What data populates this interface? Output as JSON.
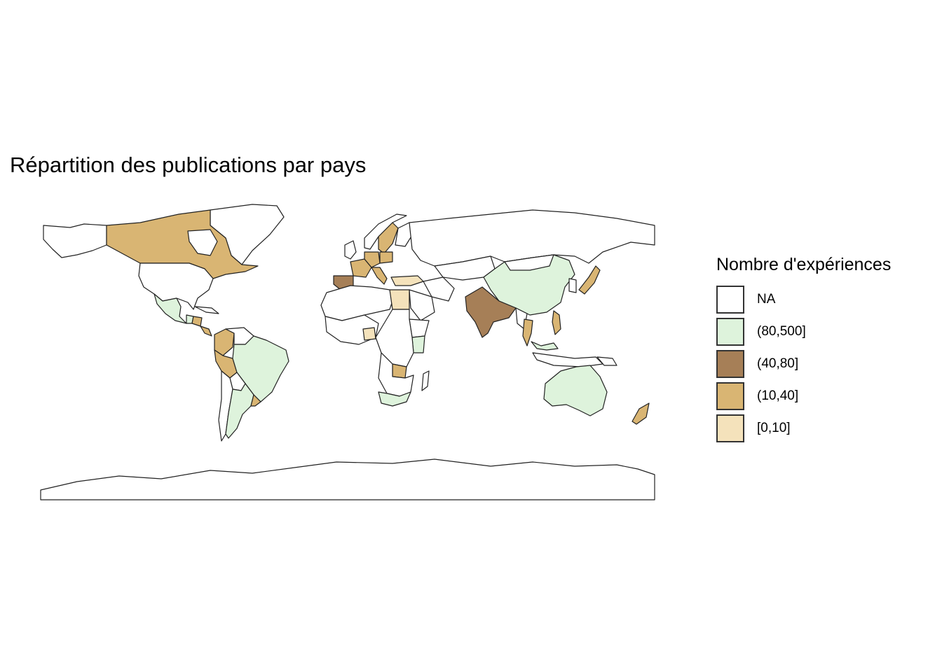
{
  "map": {
    "title": "Répartition des publications par pays",
    "legend": {
      "title": "Nombre d'expériences",
      "items": [
        {
          "label": "NA",
          "color": "#ffffff"
        },
        {
          "label": "(80,500]",
          "color": "#def3dc"
        },
        {
          "label": "(40,80]",
          "color": "#a67f57"
        },
        {
          "label": "(10,40]",
          "color": "#d9b573"
        },
        {
          "label": "[0,10]",
          "color": "#f4e2bb"
        }
      ]
    },
    "border_color": "#222222",
    "country_classes": {
      "(80,500]": [
        "China",
        "Brazil",
        "Australia",
        "Mexico",
        "Argentina",
        "Kenya",
        "South Africa",
        "Malaysia",
        "Guatemala"
      ],
      "(40,80]": [
        "India",
        "Spain"
      ],
      "(10,40]": [
        "Canada",
        "Peru",
        "Colombia",
        "Zambia",
        "New Zealand",
        "Japan",
        "Philippines",
        "Uruguay",
        "France",
        "Germany",
        "Sweden",
        "Italy",
        "Thailand",
        "Costa Rica",
        "Honduras"
      ],
      "[0,10]": [
        "Egypt",
        "Turkey",
        "Nigeria"
      ]
    }
  }
}
